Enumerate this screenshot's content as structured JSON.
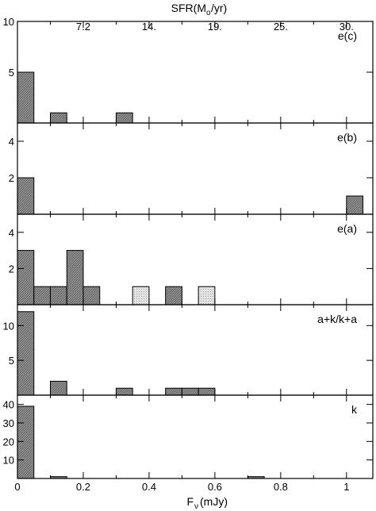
{
  "chart_data": {
    "type": "bar",
    "bin_width": 0.05,
    "xlim": [
      0,
      1.08
    ],
    "x_ticks": [
      0,
      0.2,
      0.4,
      0.6,
      0.8,
      1
    ],
    "x_tick_labels": [
      "0",
      "0.2",
      "0.4",
      "0.6",
      "0.8",
      "1"
    ],
    "xlabel_main": "F",
    "xlabel_sub": "ν",
    "xlabel_unit": "(mJy)",
    "top_axis": {
      "title_prefix": "SFR(M",
      "title_sub": "o",
      "title_suffix": "/yr)",
      "ticks": [
        0.2,
        0.4,
        0.6,
        0.8,
        1
      ],
      "tick_labels": [
        "7.2",
        "14.",
        "19.",
        "25.",
        "30."
      ]
    },
    "colors": {
      "dark_fill": "#8c8c8c",
      "light_fill": "#d9d9d9",
      "line": "#000000"
    },
    "panels": [
      {
        "label": "e(c)",
        "ylim": [
          0,
          10
        ],
        "yticks": [
          5,
          10
        ],
        "ytick_labels": [
          "5",
          "10"
        ],
        "bars": [
          {
            "x": 0.0,
            "count": 5,
            "shade": "dark"
          },
          {
            "x": 0.1,
            "count": 1,
            "shade": "dark"
          },
          {
            "x": 0.3,
            "count": 1,
            "shade": "dark"
          }
        ]
      },
      {
        "label": "e(b)",
        "ylim": [
          0,
          5
        ],
        "yticks": [
          2,
          4
        ],
        "ytick_labels": [
          "2",
          "4"
        ],
        "bars": [
          {
            "x": 0.0,
            "count": 2,
            "shade": "dark"
          },
          {
            "x": 1.0,
            "count": 1,
            "shade": "dark"
          }
        ]
      },
      {
        "label": "e(a)",
        "ylim": [
          0,
          5
        ],
        "yticks": [
          2,
          4
        ],
        "ytick_labels": [
          "2",
          "4"
        ],
        "bars": [
          {
            "x": 0.0,
            "count": 3,
            "shade": "dark"
          },
          {
            "x": 0.05,
            "count": 1,
            "shade": "dark"
          },
          {
            "x": 0.1,
            "count": 1,
            "shade": "dark"
          },
          {
            "x": 0.15,
            "count": 3,
            "shade": "dark"
          },
          {
            "x": 0.2,
            "count": 1,
            "shade": "dark"
          },
          {
            "x": 0.35,
            "count": 1,
            "shade": "light"
          },
          {
            "x": 0.45,
            "count": 1,
            "shade": "dark"
          },
          {
            "x": 0.55,
            "count": 1,
            "shade": "light"
          }
        ]
      },
      {
        "label": "a+k/k+a",
        "ylim": [
          0,
          13
        ],
        "yticks": [
          5,
          10
        ],
        "ytick_labels": [
          "5",
          "10"
        ],
        "bars": [
          {
            "x": 0.0,
            "count": 12,
            "shade": "dark"
          },
          {
            "x": 0.1,
            "count": 2,
            "shade": "dark"
          },
          {
            "x": 0.3,
            "count": 1,
            "shade": "dark"
          },
          {
            "x": 0.45,
            "count": 1,
            "shade": "dark"
          },
          {
            "x": 0.5,
            "count": 1,
            "shade": "dark"
          },
          {
            "x": 0.55,
            "count": 1,
            "shade": "dark"
          }
        ]
      },
      {
        "label": "k",
        "ylim": [
          0,
          45
        ],
        "yticks": [
          10,
          20,
          30,
          40
        ],
        "ytick_labels": [
          "10",
          "20",
          "30",
          "40"
        ],
        "bars": [
          {
            "x": 0.0,
            "count": 39,
            "shade": "dark"
          },
          {
            "x": 0.1,
            "count": 1,
            "shade": "dark"
          },
          {
            "x": 0.7,
            "count": 1,
            "shade": "dark"
          }
        ]
      }
    ]
  }
}
